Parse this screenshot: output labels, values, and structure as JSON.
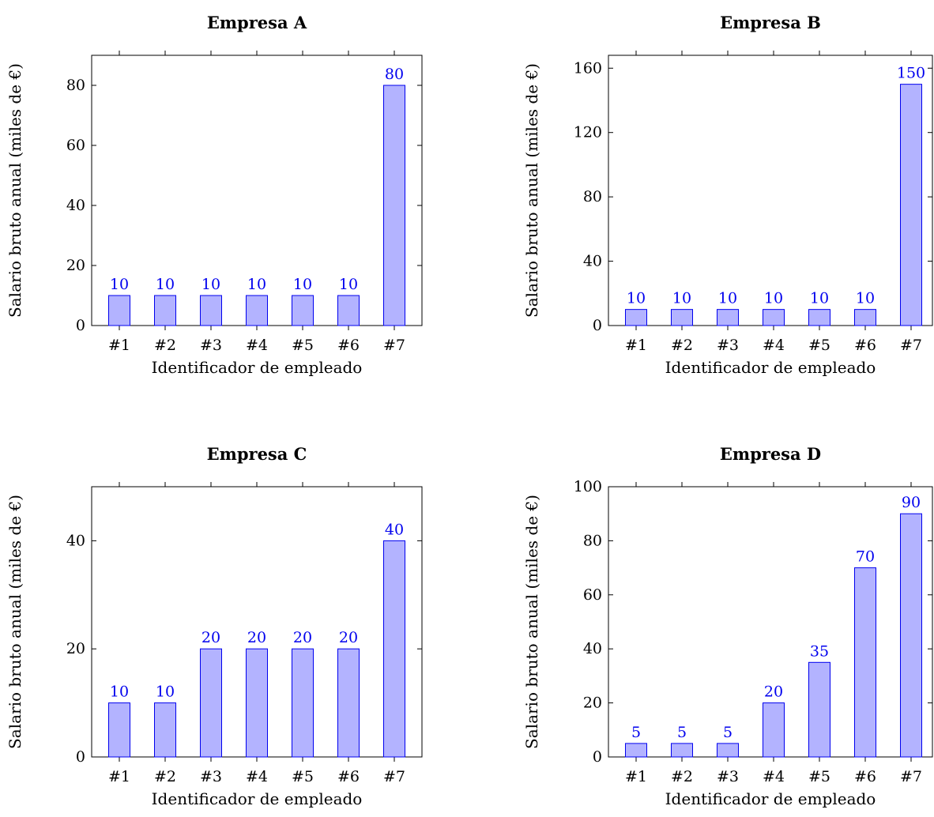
{
  "chart_data": [
    {
      "type": "bar",
      "title": "Empresa A",
      "xlabel": "Identificador de empleado",
      "ylabel": "Salario bruto anual (miles de €)",
      "categories": [
        "#1",
        "#2",
        "#3",
        "#4",
        "#5",
        "#6",
        "#7"
      ],
      "values": [
        10,
        10,
        10,
        10,
        10,
        10,
        80
      ],
      "ylim": [
        0,
        90
      ],
      "yticks": [
        0,
        20,
        40,
        60,
        80
      ],
      "bar_color": "#b3b3ff",
      "edge_color": "#0000ee",
      "label_color": "#0000ee"
    },
    {
      "type": "bar",
      "title": "Empresa B",
      "xlabel": "Identificador de empleado",
      "ylabel": "Salario bruto anual (miles de €)",
      "categories": [
        "#1",
        "#2",
        "#3",
        "#4",
        "#5",
        "#6",
        "#7"
      ],
      "values": [
        10,
        10,
        10,
        10,
        10,
        10,
        150
      ],
      "ylim": [
        0,
        168
      ],
      "yticks": [
        0,
        40,
        80,
        120,
        160
      ],
      "bar_color": "#b3b3ff",
      "edge_color": "#0000ee",
      "label_color": "#0000ee"
    },
    {
      "type": "bar",
      "title": "Empresa C",
      "xlabel": "Identificador de empleado",
      "ylabel": "Salario bruto anual (miles de €)",
      "categories": [
        "#1",
        "#2",
        "#3",
        "#4",
        "#5",
        "#6",
        "#7"
      ],
      "values": [
        10,
        10,
        20,
        20,
        20,
        20,
        40
      ],
      "ylim": [
        0,
        50
      ],
      "yticks": [
        0,
        20,
        40
      ],
      "bar_color": "#b3b3ff",
      "edge_color": "#0000ee",
      "label_color": "#0000ee"
    },
    {
      "type": "bar",
      "title": "Empresa D",
      "xlabel": "Identificador de empleado",
      "ylabel": "Salario bruto anual (miles de €)",
      "categories": [
        "#1",
        "#2",
        "#3",
        "#4",
        "#5",
        "#6",
        "#7"
      ],
      "values": [
        5,
        5,
        5,
        20,
        35,
        70,
        90
      ],
      "ylim": [
        0,
        100
      ],
      "yticks": [
        0,
        20,
        40,
        60,
        80,
        100
      ],
      "bar_color": "#b3b3ff",
      "edge_color": "#0000ee",
      "label_color": "#0000ee"
    }
  ]
}
